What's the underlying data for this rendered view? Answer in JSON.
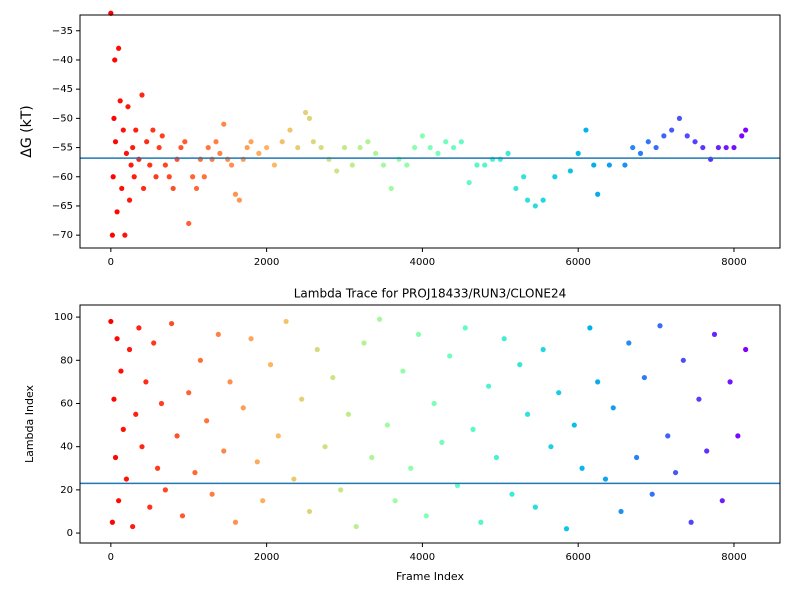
{
  "chart_data": [
    {
      "type": "scatter",
      "ylabel": "ΔG (kT)",
      "x": [
        0,
        20,
        30,
        40,
        50,
        60,
        80,
        100,
        120,
        140,
        160,
        180,
        200,
        220,
        240,
        260,
        280,
        300,
        320,
        360,
        400,
        420,
        460,
        500,
        540,
        580,
        620,
        660,
        700,
        750,
        800,
        850,
        900,
        950,
        1000,
        1050,
        1100,
        1150,
        1200,
        1250,
        1300,
        1350,
        1400,
        1450,
        1500,
        1550,
        1600,
        1650,
        1700,
        1750,
        1800,
        1900,
        2000,
        2100,
        2200,
        2300,
        2400,
        2500,
        2550,
        2600,
        2700,
        2800,
        2900,
        3000,
        3100,
        3200,
        3300,
        3400,
        3500,
        3600,
        3700,
        3800,
        3900,
        4000,
        4100,
        4200,
        4300,
        4400,
        4500,
        4600,
        4700,
        4800,
        4900,
        5000,
        5100,
        5200,
        5300,
        5350,
        5450,
        5550,
        5700,
        5900,
        6000,
        6100,
        6200,
        6250,
        6400,
        6600,
        6700,
        6800,
        6900,
        7000,
        7100,
        7200,
        7300,
        7400,
        7500,
        7600,
        7700,
        7800,
        7900,
        8000,
        8100,
        8150
      ],
      "values": [
        -32,
        -70,
        -60,
        -50,
        -40,
        -54,
        -66,
        -38,
        -47,
        -62,
        -52,
        -70,
        -56,
        -48,
        -64,
        -58,
        -55,
        -60,
        -52,
        -57,
        -46,
        -62,
        -54,
        -58,
        -52,
        -60,
        -55,
        -53,
        -58,
        -60,
        -62,
        -57,
        -55,
        -54,
        -68,
        -60,
        -62,
        -57,
        -60,
        -55,
        -57,
        -54,
        -56,
        -51,
        -57,
        -58,
        -63,
        -64,
        -57,
        -55,
        -54,
        -56,
        -55,
        -58,
        -54,
        -52,
        -55,
        -49,
        -50,
        -54,
        -55,
        -57,
        -59,
        -55,
        -58,
        -55,
        -54,
        -56,
        -58,
        -62,
        -57,
        -58,
        -55,
        -53,
        -55,
        -56,
        -54,
        -55,
        -54,
        -61,
        -58,
        -58,
        -57,
        -57,
        -56,
        -62,
        -60,
        -64,
        -65,
        -64,
        -60,
        -59,
        -56,
        -52,
        -58,
        -63,
        -58,
        -58,
        -55,
        -56,
        -54,
        -55,
        -53,
        -52,
        -50,
        -53,
        -54,
        -55,
        -57,
        -55,
        -55,
        -55,
        -53,
        -52
      ],
      "colormap": "rainbow_r",
      "xlim": [
        -396,
        8591
      ],
      "ylim": [
        -72.2,
        -32.3
      ],
      "xticks": [
        0,
        2000,
        4000,
        6000,
        8000
      ],
      "yticks": [
        {
          "value": -70,
          "label": "−70"
        },
        {
          "value": -65,
          "label": "−65"
        },
        {
          "value": -60,
          "label": "−60"
        },
        {
          "value": -55,
          "label": "−55"
        },
        {
          "value": -50,
          "label": "−50"
        },
        {
          "value": -45,
          "label": "−45"
        },
        {
          "value": -40,
          "label": "−40"
        },
        {
          "value": -35,
          "label": "−35"
        }
      ],
      "hline": -56.8,
      "hline_color": "#1f77b4"
    },
    {
      "type": "scatter",
      "title": "Lambda Trace for PROJ18433/RUN3/CLONE24",
      "xlabel": "Frame Index",
      "ylabel": "Lambda Index",
      "x": [
        0,
        20,
        40,
        60,
        80,
        100,
        130,
        160,
        200,
        240,
        280,
        320,
        360,
        400,
        450,
        500,
        550,
        600,
        650,
        700,
        780,
        850,
        920,
        1000,
        1080,
        1150,
        1230,
        1300,
        1380,
        1450,
        1530,
        1600,
        1700,
        1800,
        1880,
        1950,
        2050,
        2150,
        2250,
        2350,
        2450,
        2550,
        2650,
        2750,
        2850,
        2950,
        3050,
        3150,
        3250,
        3350,
        3450,
        3550,
        3650,
        3750,
        3850,
        3950,
        4050,
        4150,
        4250,
        4350,
        4450,
        4550,
        4650,
        4750,
        4850,
        4950,
        5050,
        5150,
        5250,
        5350,
        5450,
        5550,
        5650,
        5750,
        5850,
        5950,
        6050,
        6150,
        6250,
        6350,
        6450,
        6550,
        6650,
        6750,
        6850,
        6950,
        7050,
        7150,
        7250,
        7350,
        7450,
        7550,
        7650,
        7750,
        7850,
        7950,
        8050,
        8150
      ],
      "values": [
        98,
        5,
        62,
        35,
        90,
        15,
        75,
        48,
        25,
        85,
        3,
        55,
        95,
        40,
        70,
        12,
        88,
        30,
        60,
        20,
        97,
        45,
        8,
        65,
        28,
        80,
        52,
        18,
        92,
        38,
        70,
        5,
        58,
        90,
        33,
        15,
        78,
        45,
        98,
        25,
        62,
        10,
        85,
        40,
        72,
        20,
        55,
        3,
        88,
        35,
        99,
        50,
        15,
        75,
        30,
        92,
        8,
        60,
        42,
        82,
        22,
        95,
        48,
        5,
        68,
        35,
        90,
        18,
        78,
        55,
        12,
        85,
        40,
        65,
        2,
        50,
        30,
        95,
        70,
        25,
        58,
        10,
        88,
        35,
        72,
        18,
        96,
        45,
        28,
        80,
        5,
        62,
        38,
        92,
        15,
        70,
        45,
        85
      ],
      "colormap": "rainbow_r",
      "xlim": [
        -396,
        8591
      ],
      "ylim": [
        -4.6,
        105.6
      ],
      "xticks": [
        0,
        2000,
        4000,
        6000,
        8000
      ],
      "yticks": [
        0,
        20,
        40,
        60,
        80,
        100
      ],
      "hline": 23,
      "hline_color": "#1f77b4"
    }
  ]
}
